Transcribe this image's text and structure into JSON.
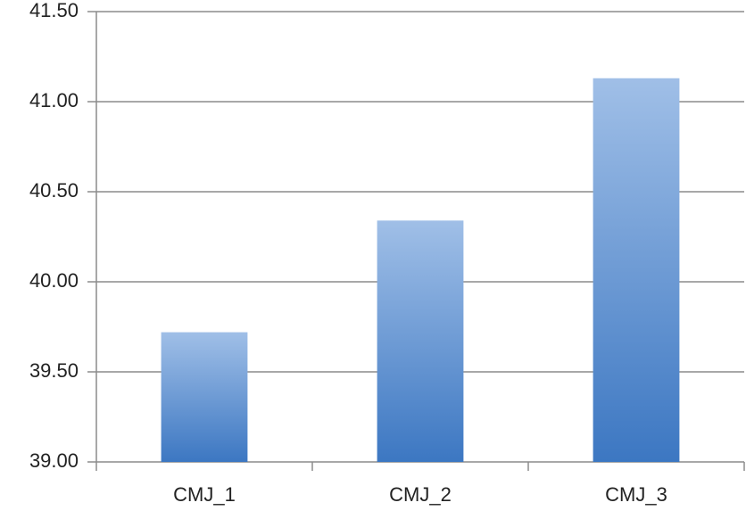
{
  "chart_data": {
    "type": "bar",
    "categories": [
      "CMJ_1",
      "CMJ_2",
      "CMJ_3"
    ],
    "values": [
      39.72,
      40.34,
      41.13
    ],
    "gradient": [
      "#a0bfe7",
      "#3c77c2"
    ],
    "ylim": [
      39,
      41.5
    ],
    "yticks": [
      {
        "value": 39,
        "label": "39.00"
      },
      {
        "value": 39.5,
        "label": "39.50"
      },
      {
        "value": 40,
        "label": "40.00"
      },
      {
        "value": 40.5,
        "label": "40.50"
      },
      {
        "value": 41,
        "label": "41.00"
      },
      {
        "value": 41.5,
        "label": "41.50"
      }
    ],
    "grid": true
  }
}
